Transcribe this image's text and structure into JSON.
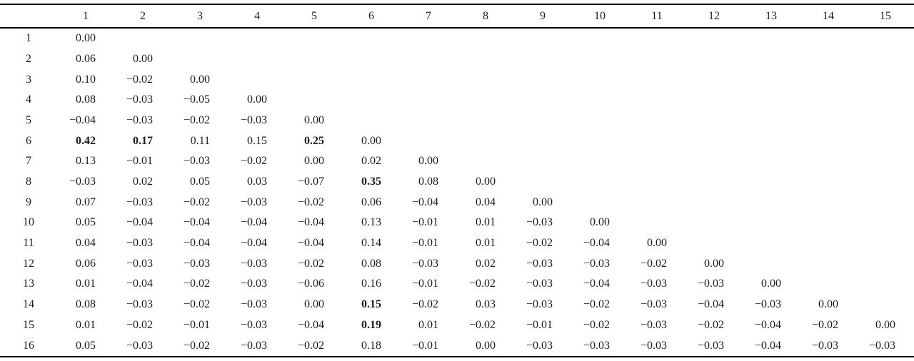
{
  "table": {
    "corner_label": "",
    "column_headers": [
      "1",
      "2",
      "3",
      "4",
      "5",
      "6",
      "7",
      "8",
      "9",
      "10",
      "11",
      "12",
      "13",
      "14",
      "15"
    ],
    "rows": [
      {
        "label": "1",
        "values": [
          "0.00"
        ]
      },
      {
        "label": "2",
        "values": [
          "0.06",
          "0.00"
        ]
      },
      {
        "label": "3",
        "values": [
          "0.10",
          "−0.02",
          "0.00"
        ]
      },
      {
        "label": "4",
        "values": [
          "0.08",
          "−0.03",
          "−0.05",
          "0.00"
        ]
      },
      {
        "label": "5",
        "values": [
          "−0.04",
          "−0.03",
          "−0.02",
          "−0.03",
          "0.00"
        ]
      },
      {
        "label": "6",
        "values": [
          "0.42",
          "0.17",
          "0.11",
          "0.15",
          "0.25",
          "0.00"
        ]
      },
      {
        "label": "7",
        "values": [
          "0.13",
          "−0.01",
          "−0.03",
          "−0.02",
          "0.00",
          "0.02",
          "0.00"
        ]
      },
      {
        "label": "8",
        "values": [
          "−0.03",
          "0.02",
          "0.05",
          "0.03",
          "−0.07",
          "0.35",
          "0.08",
          "0.00"
        ]
      },
      {
        "label": "9",
        "values": [
          "0.07",
          "−0.03",
          "−0.02",
          "−0.03",
          "−0.02",
          "0.06",
          "−0.04",
          "0.04",
          "0.00"
        ]
      },
      {
        "label": "10",
        "values": [
          "0.05",
          "−0.04",
          "−0.04",
          "−0.04",
          "−0.04",
          "0.13",
          "−0.01",
          "0.01",
          "−0.03",
          "0.00"
        ]
      },
      {
        "label": "11",
        "values": [
          "0.04",
          "−0.03",
          "−0.04",
          "−0.04",
          "−0.04",
          "0.14",
          "−0.01",
          "0.01",
          "−0.02",
          "−0.04",
          "0.00"
        ]
      },
      {
        "label": "12",
        "values": [
          "0.06",
          "−0.03",
          "−0.03",
          "−0.03",
          "−0.02",
          "0.08",
          "−0.03",
          "0.02",
          "−0.03",
          "−0.03",
          "−0.02",
          "0.00"
        ]
      },
      {
        "label": "13",
        "values": [
          "0.01",
          "−0.04",
          "−0.02",
          "−0.03",
          "−0.06",
          "0.16",
          "−0.01",
          "−0.02",
          "−0.03",
          "−0.04",
          "−0.03",
          "−0.03",
          "0.00"
        ]
      },
      {
        "label": "14",
        "values": [
          "0.08",
          "−0.03",
          "−0.02",
          "−0.03",
          "0.00",
          "0.15",
          "−0.02",
          "0.03",
          "−0.03",
          "−0.02",
          "−0.03",
          "−0.04",
          "−0.03",
          "0.00"
        ]
      },
      {
        "label": "15",
        "values": [
          "0.01",
          "−0.02",
          "−0.01",
          "−0.03",
          "−0.04",
          "0.19",
          "0.01",
          "−0.02",
          "−0.01",
          "−0.02",
          "−0.03",
          "−0.02",
          "−0.04",
          "−0.02",
          "0.00"
        ]
      },
      {
        "label": "16",
        "values": [
          "0.05",
          "−0.03",
          "−0.02",
          "−0.03",
          "−0.02",
          "0.18",
          "−0.01",
          "0.00",
          "−0.03",
          "−0.03",
          "−0.03",
          "−0.03",
          "−0.04",
          "−0.03",
          "−0.03"
        ]
      }
    ],
    "bold_cells": [
      "6-1",
      "6-2",
      "6-5",
      "8-6",
      "14-6",
      "15-6"
    ],
    "colors": {
      "text": "#1b1b1b",
      "rule": "#000000",
      "background": "#ffffff"
    }
  }
}
